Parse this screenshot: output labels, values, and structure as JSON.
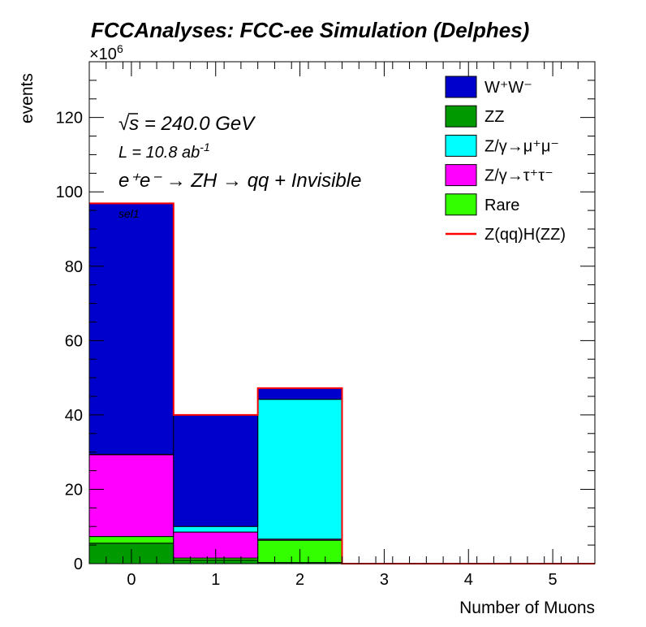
{
  "chart_data": {
    "type": "bar",
    "stacked": true,
    "title": "FCCAnalyses: FCC-ee Simulation (Delphes)",
    "xlabel": "Number of Muons",
    "ylabel": "events",
    "y_exponent_label": "×10",
    "y_exponent_power": "6",
    "categories": [
      "0",
      "1",
      "2",
      "3",
      "4",
      "5"
    ],
    "xlim": [
      -0.5,
      5.5
    ],
    "ylim": [
      0,
      135
    ],
    "yticks": [
      0,
      20,
      40,
      60,
      80,
      100,
      120
    ],
    "xticks": [
      0,
      1,
      2,
      3,
      4,
      5
    ],
    "annotations": {
      "sqrt_s_symbol": "√",
      "sqrt_s_var": "s",
      "sqrt_s_text": " = 240.0 GeV",
      "lumi_base": "L = 10.8 ab",
      "lumi_sup": "-1",
      "process_text": "e⁺e⁻ → ZH → qq + Invisible",
      "selection": "sel1"
    },
    "series": [
      {
        "name": "ZZ",
        "color": "#009900",
        "values": [
          5.5,
          1.0,
          0.3,
          0,
          0,
          0
        ]
      },
      {
        "name": "Rare",
        "color": "#33ff00",
        "values": [
          1.8,
          0.5,
          6.0,
          0,
          0,
          0
        ]
      },
      {
        "name": "Z/γ→τ⁺τ⁻",
        "color": "#ff00ff",
        "values": [
          22.0,
          7.0,
          0.3,
          0,
          0,
          0
        ]
      },
      {
        "name": "Z/γ→μ⁺μ⁻",
        "color": "#00ffff",
        "values": [
          0.1,
          1.5,
          37.6,
          0,
          0,
          0
        ]
      },
      {
        "name": "W⁺W⁻",
        "color": "#0000cc",
        "values": [
          67.5,
          30.0,
          3.0,
          0,
          0,
          0
        ]
      }
    ],
    "signal": {
      "name": "Z(qq)H(ZZ)",
      "color": "#ff0000",
      "values": [
        96.9,
        40.0,
        47.2,
        0,
        0,
        0
      ]
    },
    "legend": {
      "placement": "top-right",
      "entries": [
        {
          "label": "W⁺W⁻",
          "color": "#0000cc",
          "kind": "box"
        },
        {
          "label": "ZZ",
          "color": "#009900",
          "kind": "box"
        },
        {
          "label": "Z/γ→μ⁺μ⁻",
          "color": "#00ffff",
          "kind": "box"
        },
        {
          "label": "Z/γ→τ⁺τ⁻",
          "color": "#ff00ff",
          "kind": "box"
        },
        {
          "label": "Rare",
          "color": "#33ff00",
          "kind": "box"
        },
        {
          "label": "Z(qq)H(ZZ)",
          "color": "#ff0000",
          "kind": "line"
        }
      ]
    },
    "grid": false
  }
}
